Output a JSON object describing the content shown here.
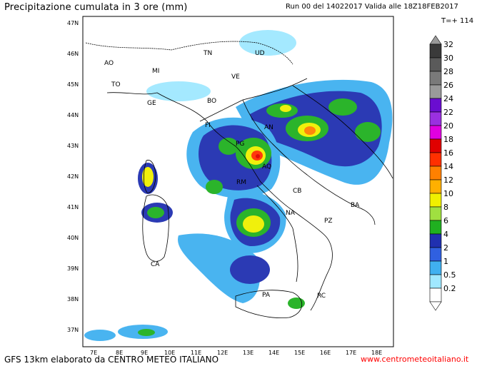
{
  "header": {
    "title": "Precipitazione cumulata in 3 ore (mm)",
    "run": "Run 00 del 14022017  Valida alle 18Z18FEB2017",
    "timestep": "T=+ 114"
  },
  "footer": {
    "left": "GFS 13km elaborato da CENTRO METEO ITALIANO",
    "right": "www.centrometeoitaliano.it"
  },
  "axes": {
    "lat_labels": [
      "47N",
      "46N",
      "45N",
      "44N",
      "43N",
      "42N",
      "41N",
      "40N",
      "39N",
      "38N",
      "37N"
    ],
    "lon_labels": [
      "7E",
      "8E",
      "9E",
      "10E",
      "11E",
      "12E",
      "13E",
      "14E",
      "15E",
      "16E",
      "17E",
      "18E"
    ]
  },
  "cities": [
    "AO",
    "MI",
    "TO",
    "TN",
    "UD",
    "VE",
    "BO",
    "GE",
    "FI",
    "AN",
    "PG",
    "AQ",
    "RM",
    "CB",
    "BA",
    "NA",
    "PZ",
    "CA",
    "RC",
    "PA"
  ],
  "legend": {
    "levels": [
      "32",
      "30",
      "28",
      "26",
      "24",
      "22",
      "20",
      "18",
      "16",
      "14",
      "12",
      "10",
      "8",
      "6",
      "4",
      "2",
      "1",
      "0.5",
      "0.2"
    ],
    "colors": [
      "#9a9a9a",
      "#3a3a3a",
      "#5a5a5a",
      "#7a7a7a",
      "#9a9a9a",
      "#6a0dd0",
      "#9a30e0",
      "#e000e0",
      "#e00000",
      "#ff3000",
      "#ff8000",
      "#ffb000",
      "#f0f000",
      "#a0e040",
      "#20b020",
      "#2030b0",
      "#3060e0",
      "#40b0f0",
      "#a0e8ff",
      "#ffffff"
    ]
  }
}
